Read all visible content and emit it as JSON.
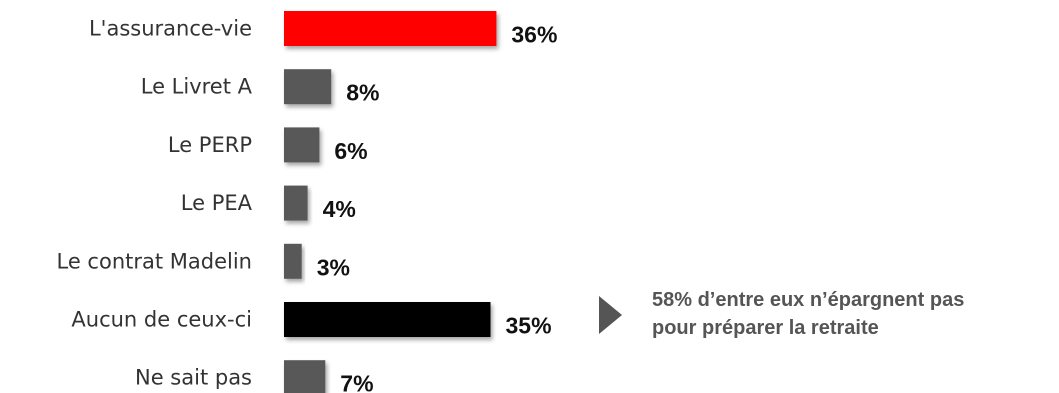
{
  "chart_data": {
    "type": "bar",
    "orientation": "horizontal",
    "categories": [
      "L'assurance-vie",
      "Le Livret A",
      "Le PERP",
      "Le PEA",
      "Le contrat Madelin",
      "Aucun de ceux-ci",
      "Ne sait pas"
    ],
    "values": [
      36,
      8,
      6,
      4,
      3,
      35,
      7
    ],
    "value_labels": [
      "36%",
      "8%",
      "6%",
      "4%",
      "3%",
      "35%",
      "7%"
    ],
    "colors": [
      "#ff0000",
      "#595959",
      "#595959",
      "#595959",
      "#595959",
      "#000000",
      "#595959"
    ],
    "xlim": [
      0,
      40
    ],
    "grid": false,
    "title": "",
    "xlabel": "",
    "ylabel": ""
  },
  "annotation": {
    "icon": "triangle-right-icon",
    "line1": "58% d’entre eux n’épargnent pas",
    "line2": "pour préparer la retraite"
  }
}
